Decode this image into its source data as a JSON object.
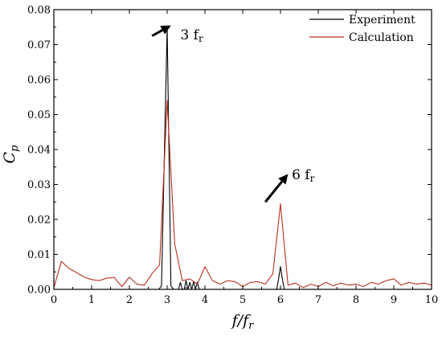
{
  "chart_data": {
    "type": "line",
    "xlabel": "f/f",
    "xlabel_sub": "r",
    "ylabel": "C",
    "ylabel_sub": "p",
    "xlim": [
      0,
      10
    ],
    "ylim": [
      0,
      0.08
    ],
    "x_ticks": [
      0,
      1,
      2,
      3,
      4,
      5,
      6,
      7,
      8,
      9,
      10
    ],
    "y_ticks": [
      0.0,
      0.01,
      0.02,
      0.03,
      0.04,
      0.05,
      0.06,
      0.07,
      0.08
    ],
    "y_tick_labels": [
      "0.00",
      "0.01",
      "0.02",
      "0.03",
      "0.04",
      "0.05",
      "0.06",
      "0.07",
      "0.08"
    ],
    "grid": false,
    "legend": "top-right",
    "series": [
      {
        "name": "Experiment",
        "color": "#000000",
        "x": [
          0,
          2.78,
          2.85,
          3.0,
          3.1,
          3.17,
          3.3,
          3.35,
          3.4,
          3.45,
          3.5,
          3.55,
          3.6,
          3.65,
          3.7,
          3.75,
          3.8,
          3.85,
          5.9,
          5.95,
          6.0,
          6.05,
          6.1,
          10
        ],
        "y": [
          0,
          0,
          0.001,
          0.075,
          0.001,
          0,
          0,
          0.002,
          0,
          0,
          0.0025,
          0,
          0.002,
          0,
          0.0022,
          0,
          0.002,
          0,
          0,
          0.003,
          0.0065,
          0.003,
          0,
          0
        ]
      },
      {
        "name": "Calculation",
        "color": "#b5301f",
        "x": [
          0,
          0.2,
          0.4,
          0.6,
          0.8,
          1.0,
          1.2,
          1.4,
          1.6,
          1.8,
          2.0,
          2.2,
          2.4,
          2.6,
          2.8,
          3.0,
          3.2,
          3.4,
          3.6,
          3.8,
          4.0,
          4.2,
          4.4,
          4.6,
          4.8,
          5.0,
          5.2,
          5.4,
          5.6,
          5.8,
          6.0,
          6.2,
          6.4,
          6.6,
          6.8,
          7.0,
          7.2,
          7.4,
          7.6,
          7.8,
          8.0,
          8.2,
          8.4,
          8.6,
          8.8,
          9.0,
          9.2,
          9.4,
          9.6,
          9.8,
          10.0
        ],
        "y": [
          0.0005,
          0.008,
          0.006,
          0.0048,
          0.0035,
          0.0028,
          0.0025,
          0.0032,
          0.0034,
          0.0008,
          0.0035,
          0.0015,
          0.0012,
          0.0045,
          0.007,
          0.054,
          0.013,
          0.0025,
          0.003,
          0.0015,
          0.0065,
          0.0025,
          0.0015,
          0.0025,
          0.0022,
          0.0008,
          0.002,
          0.0022,
          0.0015,
          0.0045,
          0.0245,
          0.0012,
          0.0018,
          0.0005,
          0.0015,
          0.0008,
          0.002,
          0.001,
          0.0018,
          0.0012,
          0.0015,
          0.0008,
          0.002,
          0.0015,
          0.0025,
          0.003,
          0.0012,
          0.002,
          0.0015,
          0.0018,
          0.0012
        ]
      }
    ],
    "annotations": [
      {
        "text": "3 f",
        "sub": "r",
        "x": 3.35,
        "y": 0.0715,
        "arrow_from": [
          2.6,
          0.0725
        ],
        "arrow_to": [
          3.1,
          0.0755
        ]
      },
      {
        "text": "6 f",
        "sub": "r",
        "x": 6.3,
        "y": 0.0315,
        "arrow_from": [
          5.6,
          0.025
        ],
        "arrow_to": [
          6.2,
          0.033
        ]
      }
    ]
  }
}
